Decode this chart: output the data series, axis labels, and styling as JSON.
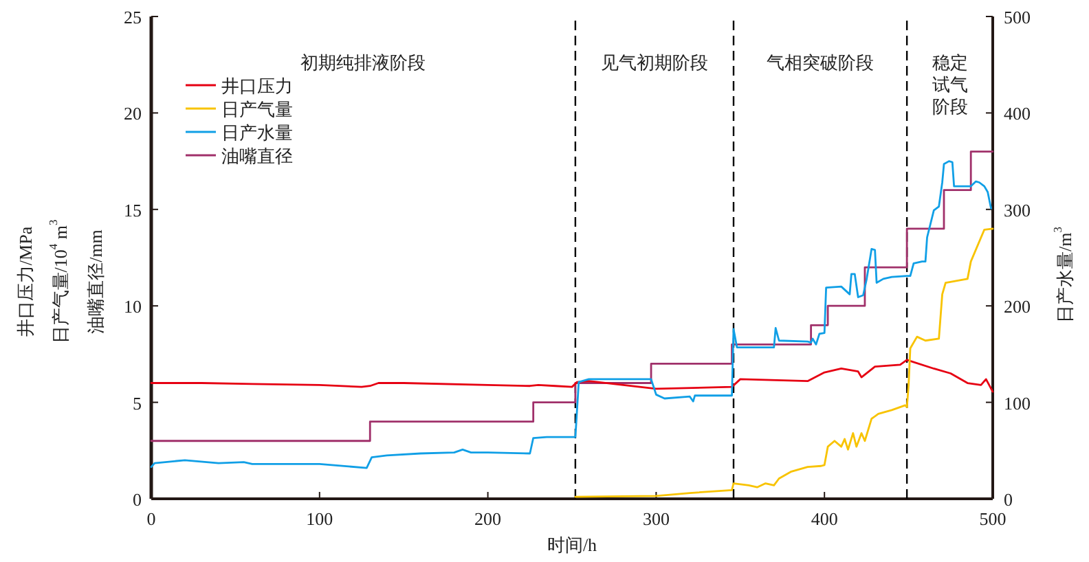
{
  "chart_data": {
    "type": "line",
    "xlabel": "时间/h",
    "ylabel": "井口压力/MPa\n日产气量/10$^{4}$ m$^{3}$\n油嘴直径/mm",
    "y2label": "日产水量/m$^{3}$",
    "xlim": [
      0,
      500
    ],
    "xticks": [
      0,
      100,
      200,
      300,
      400,
      500
    ],
    "ylim": [
      0,
      25
    ],
    "yticks": [
      0,
      5,
      10,
      15,
      20,
      25
    ],
    "y2lim": [
      0,
      500
    ],
    "y2ticks": [
      0,
      100,
      200,
      300,
      400,
      500
    ],
    "legend": "top left",
    "grid": false,
    "ref_lines": [
      {
        "axis": "x",
        "value": 252,
        "line_style": "dashed",
        "color": "#000000"
      },
      {
        "axis": "x",
        "value": 346,
        "line_style": "dashed",
        "color": "#000000"
      },
      {
        "axis": "x",
        "value": 449,
        "line_style": "dashed",
        "color": "#000000"
      }
    ],
    "annotations": [
      "初期纯排液阶段",
      "见气初期阶段",
      "气相突破阶段",
      "稳定试气阶段"
    ],
    "series": [
      {
        "name": "井口压力",
        "color": "#e60012",
        "x": [
          0,
          30,
          60,
          100,
          125,
          130,
          135,
          150,
          200,
          225,
          230,
          240,
          250,
          253,
          260,
          300,
          345,
          350,
          390,
          400,
          410,
          420,
          422,
          430,
          445,
          449,
          465,
          475,
          485,
          493,
          496,
          500
        ],
        "values": [
          6.0,
          6.0,
          5.95,
          5.9,
          5.8,
          5.85,
          6.0,
          6.0,
          5.9,
          5.85,
          5.9,
          5.85,
          5.8,
          6.05,
          6.1,
          5.7,
          5.8,
          6.2,
          6.1,
          6.55,
          6.75,
          6.6,
          6.3,
          6.85,
          6.95,
          7.2,
          6.75,
          6.5,
          6.0,
          5.9,
          6.2,
          5.55
        ]
      },
      {
        "name": "日产气量",
        "color": "#f8c300",
        "x": [
          252,
          300,
          320,
          345,
          346,
          355,
          360,
          365,
          370,
          373,
          380,
          390,
          398,
          400,
          402,
          406,
          410,
          412,
          414,
          417,
          419,
          422,
          424,
          428,
          432,
          440,
          448,
          449,
          450,
          451,
          455,
          460,
          468,
          470,
          472,
          485,
          487,
          495,
          500
        ],
        "values": [
          0.1,
          0.15,
          0.3,
          0.45,
          0.8,
          0.7,
          0.6,
          0.8,
          0.7,
          1.05,
          1.4,
          1.65,
          1.7,
          1.75,
          2.7,
          3.0,
          2.7,
          3.1,
          2.55,
          3.4,
          2.7,
          3.4,
          3.0,
          4.15,
          4.4,
          4.6,
          4.85,
          4.75,
          5.9,
          7.8,
          8.4,
          8.2,
          8.3,
          10.6,
          11.2,
          11.4,
          12.3,
          13.95,
          14.0
        ]
      },
      {
        "name": "日产水量",
        "color": "#109fe6",
        "axis": "y2",
        "x": [
          0,
          2,
          20,
          40,
          55,
          60,
          100,
          128,
          131,
          140,
          160,
          180,
          185,
          190,
          200,
          225,
          227,
          235,
          252,
          254,
          260,
          297,
          300,
          305,
          320,
          322,
          323,
          345,
          346,
          348,
          370,
          371,
          373,
          390,
          392,
          393,
          395,
          397,
          400,
          401,
          410,
          415,
          416,
          418,
          420,
          423,
          425,
          428,
          430,
          431,
          435,
          440,
          449,
          451,
          453,
          458,
          460,
          461,
          465,
          468,
          470,
          471,
          474,
          476,
          477,
          480,
          487,
          490,
          492,
          495,
          497,
          499
        ],
        "values": [
          33,
          37,
          40,
          37,
          38,
          36,
          36,
          32,
          43,
          45,
          47,
          48,
          51,
          48,
          48,
          47,
          63,
          64,
          64,
          121,
          124,
          124,
          108,
          104,
          106,
          101,
          107,
          107,
          176,
          157,
          157,
          177,
          164,
          163,
          162,
          166,
          160,
          171,
          172,
          219,
          220,
          212,
          233,
          233,
          209,
          211,
          227,
          259,
          258,
          224,
          228,
          230,
          231,
          231,
          244,
          246,
          246,
          271,
          299,
          303,
          328,
          347,
          350,
          349,
          324,
          324,
          324,
          329,
          328,
          324,
          318,
          301
        ]
      },
      {
        "name": "油嘴直径",
        "color": "#a0306a",
        "type": "step",
        "x": [
          0,
          130,
          227,
          252,
          297,
          345,
          392,
          402,
          424,
          449,
          471,
          487,
          500
        ],
        "values": [
          3,
          4,
          5,
          6,
          7,
          8,
          9,
          10,
          12,
          14,
          16,
          18,
          18
        ]
      }
    ]
  }
}
